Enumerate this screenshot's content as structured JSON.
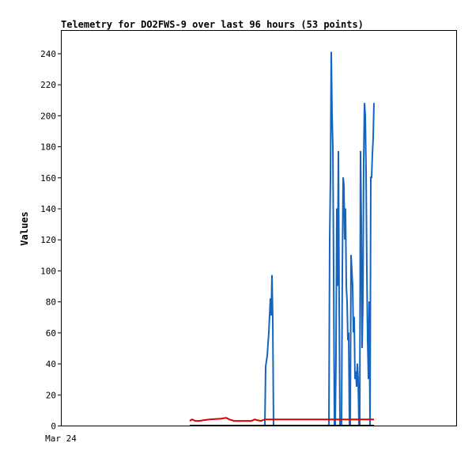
{
  "chart_data": {
    "type": "line",
    "title": "Telemetry for DO2FWS-9 over last 96 hours (53 points)",
    "ylabel": "Values",
    "xlabel": "",
    "x_tick_labels": [
      "Mar 24"
    ],
    "ylim": [
      0,
      255
    ],
    "yticks": [
      0,
      20,
      40,
      60,
      80,
      100,
      120,
      140,
      160,
      180,
      200,
      220,
      240
    ],
    "grid": false,
    "legend": "none",
    "colors": {
      "blue_series": "#1565C0",
      "red_series": "#DD0000",
      "black_series": "#000000",
      "frame": "#000000",
      "background": "#FFFFFF"
    },
    "series": [
      {
        "color": "#1565C0",
        "points": [
          [
            335,
            0
          ],
          [
            336,
            38
          ],
          [
            338,
            45
          ],
          [
            340,
            60
          ],
          [
            342,
            82
          ],
          [
            343,
            71
          ],
          [
            344,
            97
          ],
          [
            345,
            68
          ],
          [
            346,
            0
          ],
          [
            416,
            0
          ],
          [
            417,
            120
          ],
          [
            418,
            160
          ],
          [
            419,
            241
          ],
          [
            420,
            200
          ],
          [
            421,
            180
          ],
          [
            422,
            100
          ],
          [
            423,
            0
          ],
          [
            424,
            0
          ],
          [
            425,
            45
          ],
          [
            426,
            140
          ],
          [
            427,
            90
          ],
          [
            428,
            177
          ],
          [
            429,
            80
          ],
          [
            430,
            0
          ],
          [
            432,
            0
          ],
          [
            433,
            100
          ],
          [
            434,
            160
          ],
          [
            435,
            155
          ],
          [
            436,
            120
          ],
          [
            437,
            140
          ],
          [
            438,
            90
          ],
          [
            439,
            80
          ],
          [
            440,
            55
          ],
          [
            441,
            60
          ],
          [
            442,
            0
          ],
          [
            443,
            0
          ],
          [
            444,
            110
          ],
          [
            445,
            100
          ],
          [
            446,
            90
          ],
          [
            447,
            60
          ],
          [
            448,
            70
          ],
          [
            449,
            30
          ],
          [
            450,
            35
          ],
          [
            451,
            25
          ],
          [
            452,
            40
          ],
          [
            453,
            30
          ],
          [
            454,
            0
          ],
          [
            455,
            0
          ],
          [
            456,
            177
          ],
          [
            457,
            130
          ],
          [
            458,
            50
          ],
          [
            459,
            80
          ],
          [
            460,
            170
          ],
          [
            461,
            208
          ],
          [
            462,
            200
          ],
          [
            463,
            165
          ],
          [
            464,
            100
          ],
          [
            465,
            55
          ],
          [
            466,
            30
          ],
          [
            467,
            80
          ],
          [
            468,
            0
          ],
          [
            469,
            160
          ],
          [
            470,
            160
          ],
          [
            471,
            175
          ],
          [
            472,
            185
          ],
          [
            473,
            208
          ]
        ]
      },
      {
        "color": "#DD0000",
        "points": [
          [
            240,
            3
          ],
          [
            243,
            4
          ],
          [
            247,
            3
          ],
          [
            252,
            3
          ],
          [
            258,
            3.5
          ],
          [
            265,
            4
          ],
          [
            272,
            4.2
          ],
          [
            280,
            4.5
          ],
          [
            286,
            5
          ],
          [
            290,
            4
          ],
          [
            296,
            3
          ],
          [
            305,
            3
          ],
          [
            313,
            3
          ],
          [
            318,
            3
          ],
          [
            322,
            4
          ],
          [
            325,
            3.5
          ],
          [
            330,
            3
          ],
          [
            335,
            4
          ],
          [
            345,
            4
          ],
          [
            360,
            4
          ],
          [
            380,
            4
          ],
          [
            400,
            4
          ],
          [
            420,
            4
          ],
          [
            440,
            4
          ],
          [
            460,
            4
          ],
          [
            473,
            4
          ]
        ]
      },
      {
        "color": "#000000",
        "points": [
          [
            240,
            0
          ],
          [
            473,
            0
          ]
        ]
      }
    ]
  }
}
